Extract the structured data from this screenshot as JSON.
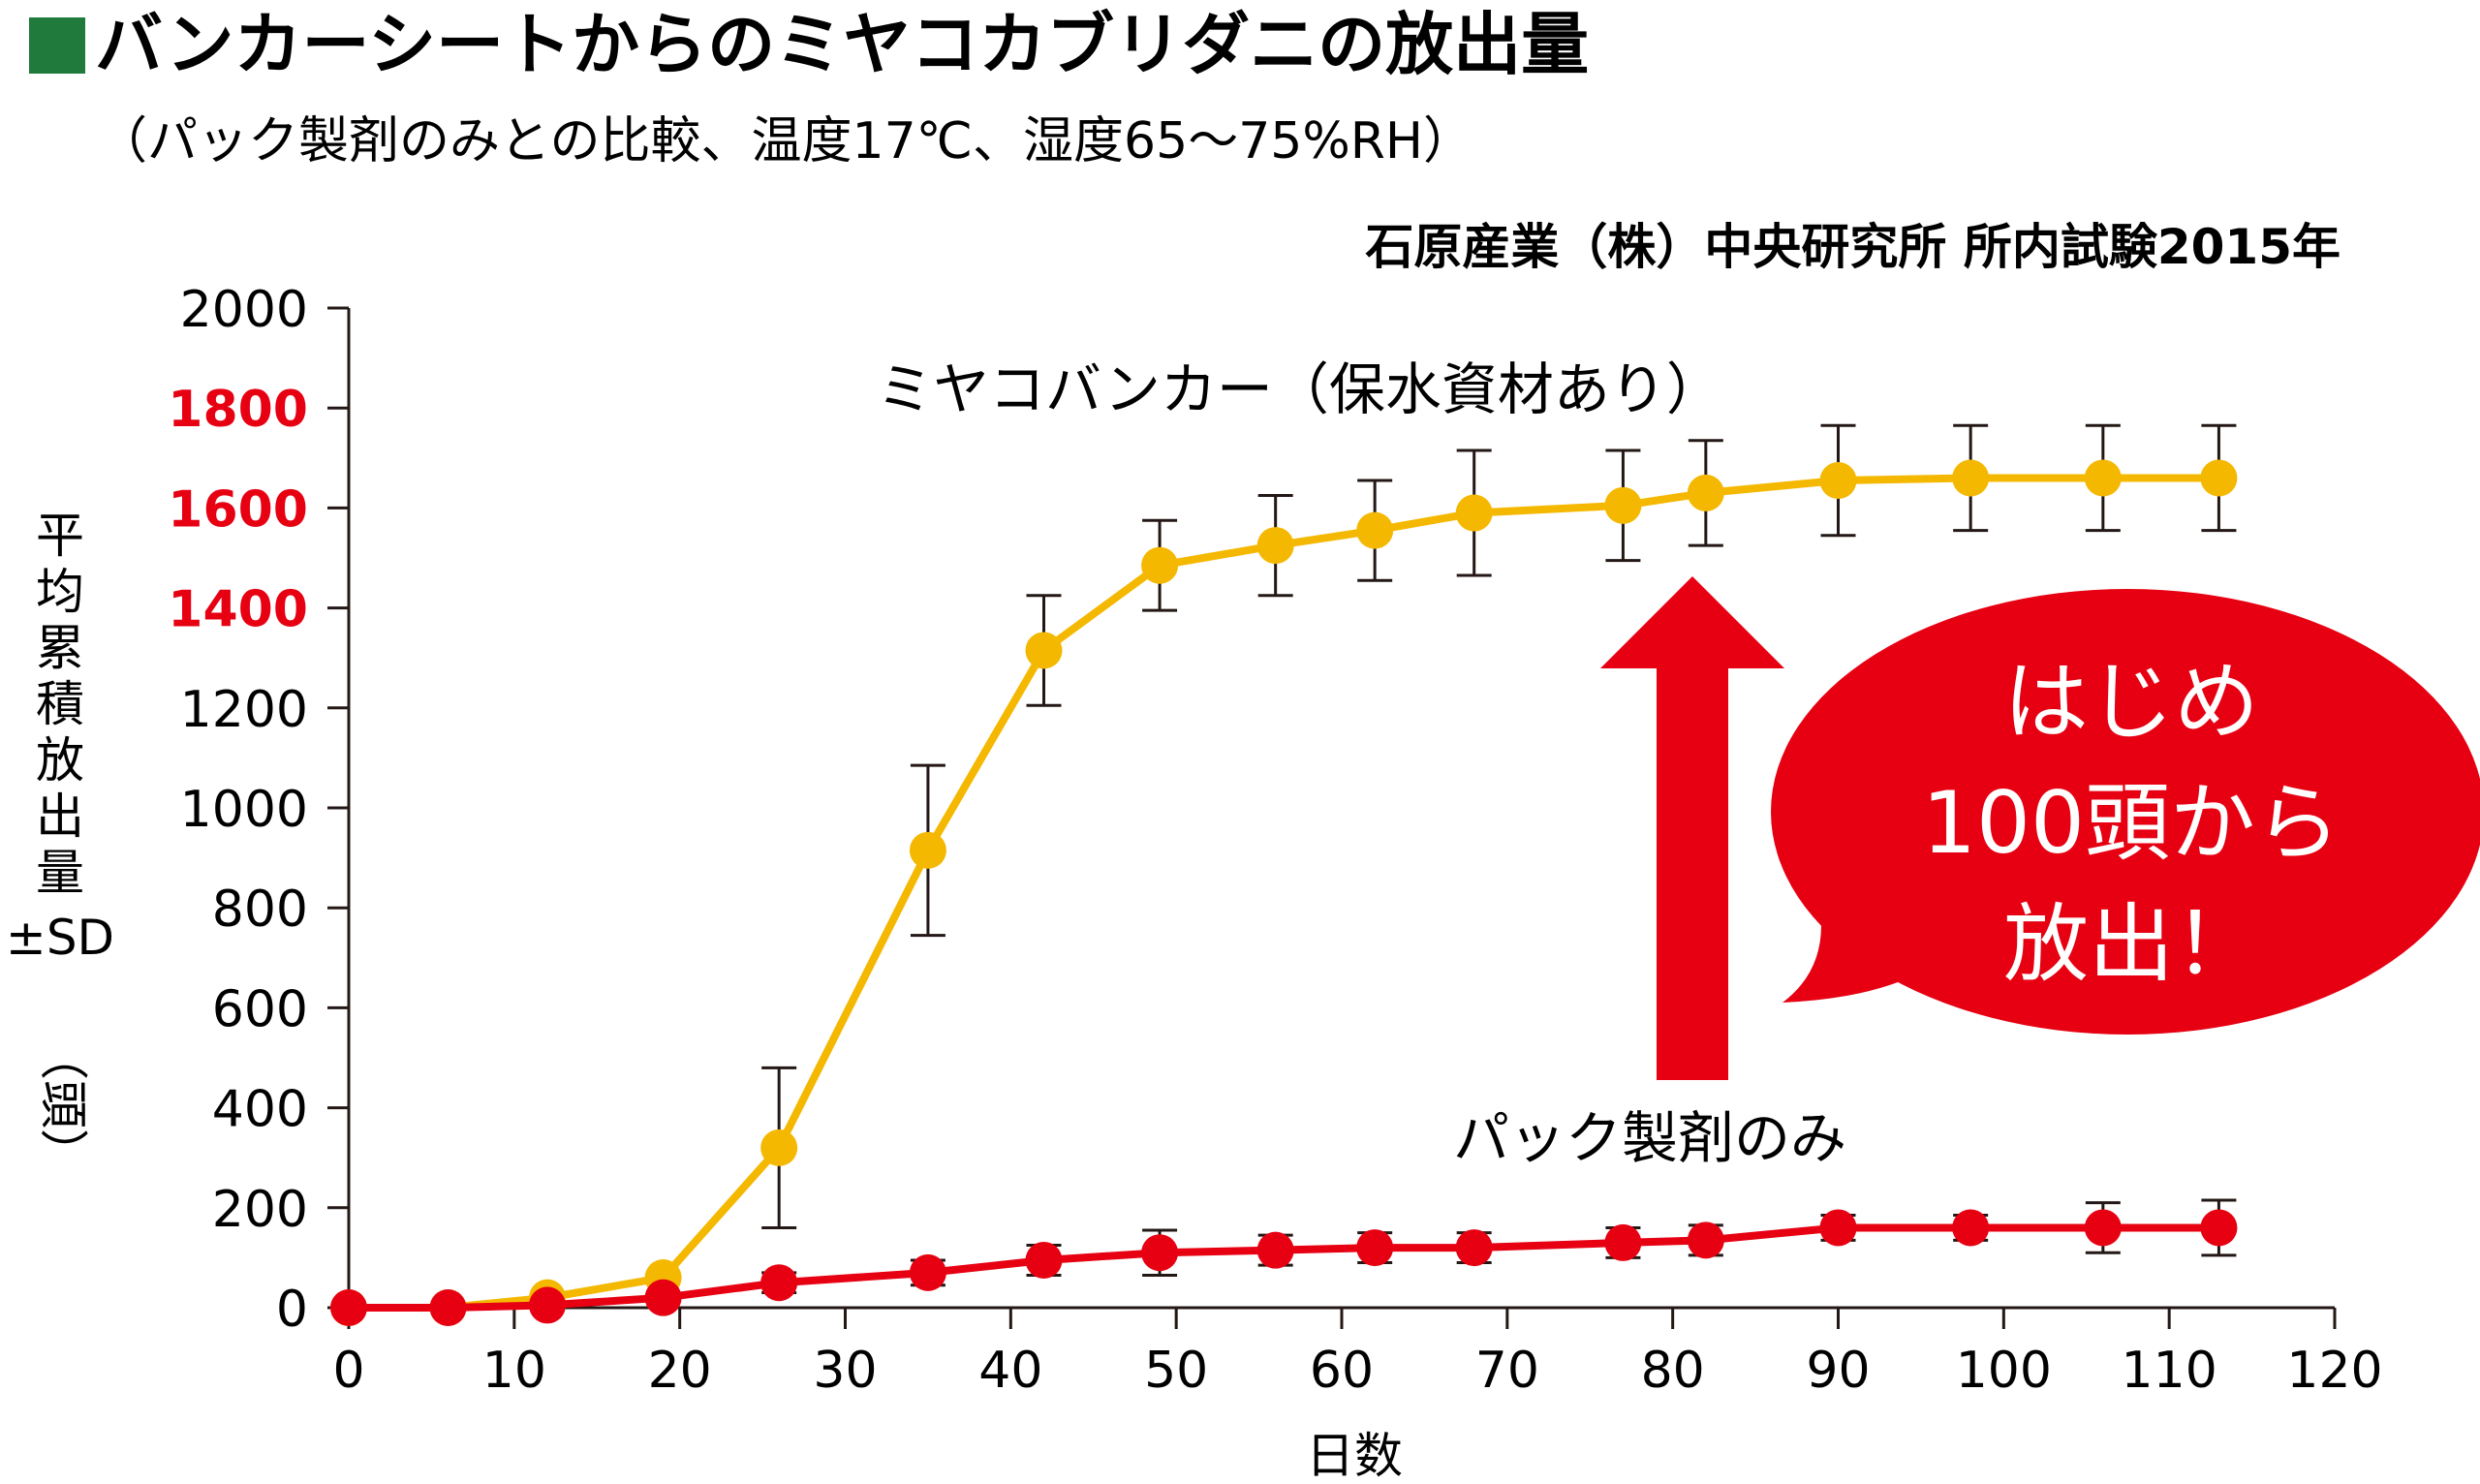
{
  "title": "バンカーシートからのミヤコカブリダニの放出量",
  "subtitle": "（パック製剤のみとの比較、温度17℃、湿度65〜75%RH）",
  "source": "石原産業（株）中央研究所 所内試験2015年",
  "colors": {
    "title_square": "#1f7a3c",
    "banker_series": "#f5b800",
    "pack_series": "#e60012",
    "highlight_tick": "#e60012",
    "text": "#231815"
  },
  "callout": {
    "lines": [
      "はじめ",
      "100頭から",
      "放出！"
    ]
  },
  "chart_data": {
    "type": "line",
    "xlabel": "日数",
    "ylabel_lines": [
      "平",
      "均",
      "累",
      "積",
      "放",
      "出",
      "量",
      "±SD",
      "（頭）"
    ],
    "xlim": [
      0,
      120
    ],
    "ylim": [
      0,
      2000
    ],
    "x_ticks": [
      "0",
      "10",
      "20",
      "30",
      "40",
      "50",
      "60",
      "70",
      "80",
      "90",
      "100",
      "110",
      "120"
    ],
    "y_ticks": [
      "0",
      "200",
      "400",
      "600",
      "800",
      "1000",
      "1200",
      "1400",
      "1600",
      "1800",
      "2000"
    ],
    "highlighted_y_ticks": [
      "1400",
      "1600",
      "1800"
    ],
    "grid": false,
    "series": [
      {
        "name": "ミヤコバンカー（保水資材あり）",
        "color": "#f5b800",
        "points": [
          {
            "x": 0,
            "y": 0,
            "sd": 0
          },
          {
            "x": 6,
            "y": 0,
            "sd": 0
          },
          {
            "x": 12,
            "y": 20,
            "sd": 0
          },
          {
            "x": 19,
            "y": 60,
            "sd": 0
          },
          {
            "x": 26,
            "y": 320,
            "sd": 160
          },
          {
            "x": 35,
            "y": 915,
            "sd": 170
          },
          {
            "x": 42,
            "y": 1315,
            "sd": 110
          },
          {
            "x": 49,
            "y": 1485,
            "sd": 90
          },
          {
            "x": 56,
            "y": 1525,
            "sd": 100
          },
          {
            "x": 62,
            "y": 1555,
            "sd": 100
          },
          {
            "x": 68,
            "y": 1590,
            "sd": 125
          },
          {
            "x": 77,
            "y": 1605,
            "sd": 110
          },
          {
            "x": 82,
            "y": 1630,
            "sd": 105
          },
          {
            "x": 90,
            "y": 1655,
            "sd": 110
          },
          {
            "x": 98,
            "y": 1660,
            "sd": 105
          },
          {
            "x": 106,
            "y": 1660,
            "sd": 105
          },
          {
            "x": 113,
            "y": 1660,
            "sd": 105
          }
        ]
      },
      {
        "name": "パック製剤のみ",
        "color": "#e60012",
        "points": [
          {
            "x": 0,
            "y": 0,
            "sd": 0
          },
          {
            "x": 6,
            "y": 0,
            "sd": 0
          },
          {
            "x": 12,
            "y": 5,
            "sd": 0
          },
          {
            "x": 19,
            "y": 20,
            "sd": 0
          },
          {
            "x": 26,
            "y": 50,
            "sd": 20
          },
          {
            "x": 35,
            "y": 70,
            "sd": 25
          },
          {
            "x": 42,
            "y": 95,
            "sd": 30
          },
          {
            "x": 49,
            "y": 110,
            "sd": 45
          },
          {
            "x": 56,
            "y": 115,
            "sd": 30
          },
          {
            "x": 62,
            "y": 120,
            "sd": 30
          },
          {
            "x": 68,
            "y": 120,
            "sd": 30
          },
          {
            "x": 77,
            "y": 130,
            "sd": 30
          },
          {
            "x": 82,
            "y": 135,
            "sd": 30
          },
          {
            "x": 90,
            "y": 160,
            "sd": 25
          },
          {
            "x": 98,
            "y": 160,
            "sd": 25
          },
          {
            "x": 106,
            "y": 160,
            "sd": 50
          },
          {
            "x": 113,
            "y": 160,
            "sd": 55
          }
        ]
      }
    ]
  }
}
